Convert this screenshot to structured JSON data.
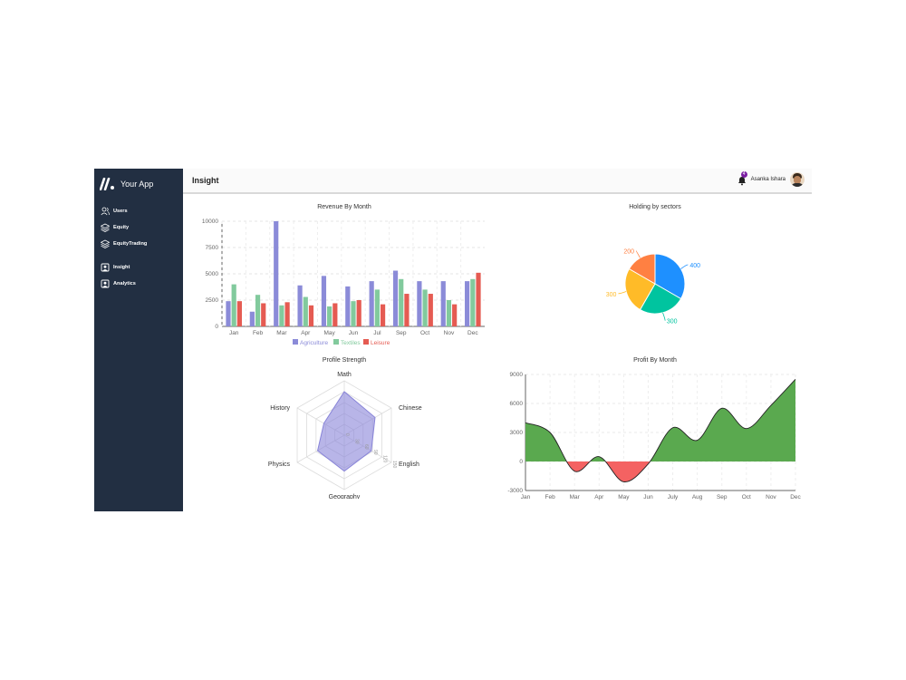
{
  "app": {
    "name": "Your App"
  },
  "sidebar": {
    "items": [
      {
        "label": "Users",
        "icon": "users-icon"
      },
      {
        "label": "Equity",
        "icon": "layers-icon"
      },
      {
        "label": "EquityTrading",
        "icon": "layers-icon"
      },
      {
        "label": "Insight",
        "icon": "user-square-icon"
      },
      {
        "label": "Analytics",
        "icon": "user-square-icon"
      }
    ]
  },
  "header": {
    "title": "Insight",
    "notification_count": "4",
    "user_name": "Asanka Ishara"
  },
  "colors": {
    "sidebar_bg": "#222f42",
    "agriculture": "#8b8bd8",
    "textiles": "#82ca9d",
    "leisure": "#e55b52",
    "profit_positive": "#5aa94f",
    "profit_negative": "#f46262",
    "radar_fill": "#8884d8"
  },
  "chart_data": [
    {
      "type": "bar",
      "title": "Revenue By Month",
      "categories": [
        "Jan",
        "Feb",
        "Mar",
        "Apr",
        "May",
        "Jun",
        "Jul",
        "Sep",
        "Oct",
        "Nov",
        "Dec"
      ],
      "series": [
        {
          "name": "Agriculture",
          "values": [
            2400,
            1400,
            10000,
            3900,
            4800,
            3800,
            4300,
            5300,
            4300,
            4300,
            4300
          ]
        },
        {
          "name": "Textiles",
          "values": [
            4000,
            3000,
            2000,
            2800,
            1900,
            2400,
            3500,
            4500,
            3500,
            2500,
            4500
          ]
        },
        {
          "name": "Leisure",
          "values": [
            2400,
            2200,
            2300,
            2000,
            2200,
            2500,
            2100,
            3100,
            3100,
            2100,
            5100
          ]
        }
      ],
      "yticks": [
        0,
        2500,
        5000,
        7500,
        10000
      ],
      "ylim": [
        0,
        10000
      ],
      "legend": "bottom"
    },
    {
      "type": "pie",
      "title": "Holding by sectors",
      "values": [
        400,
        300,
        300,
        200
      ],
      "colors": [
        "#1e90ff",
        "#00c49f",
        "#ffbb28",
        "#ff8042"
      ],
      "labels": [
        "400",
        "300",
        "300",
        "200"
      ]
    },
    {
      "type": "radar",
      "title": "Profile Strength",
      "categories": [
        "Math",
        "Chinese",
        "English",
        "Geography",
        "Physics",
        "History"
      ],
      "values": [
        120,
        98,
        86,
        99,
        85,
        65
      ],
      "max": 150,
      "ticks": [
        "0",
        "30",
        "60",
        "90",
        "120",
        "150"
      ]
    },
    {
      "type": "area",
      "title": "Profit By Month",
      "categories": [
        "Jan",
        "Feb",
        "Mar",
        "Apr",
        "May",
        "Jun",
        "July",
        "Aug",
        "Sep",
        "Oct",
        "Nov",
        "Dec"
      ],
      "values": [
        4000,
        3000,
        -1000,
        500,
        -2100,
        -250,
        3490,
        2200,
        5500,
        3400,
        5800,
        8500
      ],
      "yticks": [
        -3000,
        0,
        3000,
        6000,
        9000
      ],
      "ylim": [
        -3000,
        9000
      ]
    }
  ]
}
